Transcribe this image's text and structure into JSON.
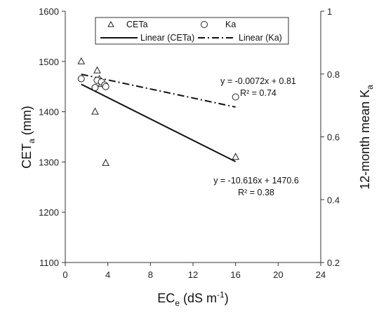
{
  "chart_data": {
    "type": "scatter",
    "x_axis": {
      "label_main": "EC",
      "label_sub": "e",
      "label_rest": " (dS m",
      "label_sup": "-1",
      "label_end": ")",
      "ticks": [
        "0",
        "4",
        "8",
        "12",
        "16",
        "20",
        "24"
      ],
      "range": [
        0,
        24
      ]
    },
    "y_left": {
      "label_main": "CET",
      "label_sub": "a",
      "label_rest": " (mm)",
      "ticks": [
        "1100",
        "1200",
        "1300",
        "1400",
        "1500",
        "1600"
      ],
      "range": [
        1100,
        1600
      ]
    },
    "y_right": {
      "label_main": "12-month mean K",
      "label_sub": "a",
      "ticks": [
        "0.2",
        "0.4",
        "0.6",
        "0.8",
        "1"
      ],
      "range": [
        0.2,
        1.0
      ]
    },
    "grid": false,
    "legend_position": "top",
    "legend": {
      "items": [
        "CETa",
        "Ka",
        "Linear (CETa)",
        "Linear (Ka)"
      ]
    },
    "series": [
      {
        "name": "CETa",
        "marker": "triangle",
        "axis": "left",
        "x": [
          1.5,
          2.8,
          3.0,
          3.2,
          3.4,
          3.8,
          16.0
        ],
        "y": [
          1500,
          1400,
          1482,
          1465,
          1455,
          1298,
          1310
        ]
      },
      {
        "name": "Ka",
        "marker": "circle",
        "axis": "right",
        "x": [
          1.5,
          2.8,
          3.0,
          3.4,
          3.7,
          3.8,
          16.0
        ],
        "y": [
          0.785,
          0.757,
          0.78,
          0.775,
          0.765,
          0.76,
          0.727
        ]
      }
    ],
    "trendlines": [
      {
        "name": "Linear (CETa)",
        "style": "solid",
        "axis": "left",
        "slope": -10.616,
        "intercept": 1470.6,
        "x_range": [
          1.5,
          16.0
        ],
        "equation": "y = -10.616x + 1470.6",
        "r2": "R² = 0.38"
      },
      {
        "name": "Linear (Ka)",
        "style": "dashdot",
        "axis": "right",
        "slope": -0.0072,
        "intercept": 0.81,
        "x_range": [
          1.5,
          16.0
        ],
        "equation": "y = -0.0072x + 0.81",
        "r2": "R² = 0.74"
      }
    ]
  }
}
